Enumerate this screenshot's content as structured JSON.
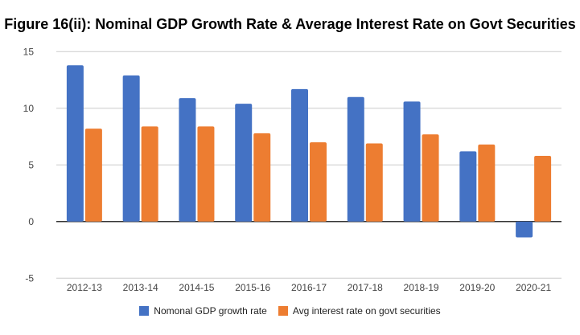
{
  "chart_data": {
    "type": "bar",
    "title": "Figure 16(ii): Nominal GDP Growth Rate & Average Interest Rate on Govt Securities",
    "categories": [
      "2012-13",
      "2013-14",
      "2014-15",
      "2015-16",
      "2016-17",
      "2017-18",
      "2018-19",
      "2019-20",
      "2020-21"
    ],
    "series": [
      {
        "name": "Nomonal GDP growth rate",
        "color": "#4472c4",
        "values": [
          13.8,
          12.9,
          10.9,
          10.4,
          11.7,
          11.0,
          10.6,
          6.2,
          -1.4
        ]
      },
      {
        "name": "Avg interest rate on govt securities",
        "color": "#ed7d31",
        "values": [
          8.2,
          8.4,
          8.4,
          7.8,
          7.0,
          6.9,
          7.7,
          6.8,
          5.8
        ]
      }
    ],
    "yticks": [
      -5,
      0,
      5,
      10,
      15
    ],
    "ylim": [
      -5,
      15
    ],
    "xlabel": "",
    "ylabel": "",
    "grid": true,
    "legend": "bottom"
  }
}
